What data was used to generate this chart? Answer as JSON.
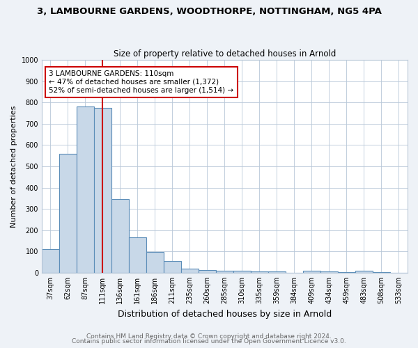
{
  "title1": "3, LAMBOURNE GARDENS, WOODTHORPE, NOTTINGHAM, NG5 4PA",
  "title2": "Size of property relative to detached houses in Arnold",
  "xlabel": "Distribution of detached houses by size in Arnold",
  "ylabel": "Number of detached properties",
  "categories": [
    "37sqm",
    "62sqm",
    "87sqm",
    "111sqm",
    "136sqm",
    "161sqm",
    "186sqm",
    "211sqm",
    "235sqm",
    "260sqm",
    "285sqm",
    "310sqm",
    "335sqm",
    "359sqm",
    "384sqm",
    "409sqm",
    "434sqm",
    "459sqm",
    "483sqm",
    "508sqm",
    "533sqm"
  ],
  "values": [
    110,
    560,
    780,
    775,
    345,
    165,
    97,
    55,
    18,
    13,
    10,
    8,
    5,
    5,
    0,
    8,
    5,
    3,
    10,
    3,
    0
  ],
  "bar_color": "#c8d8e8",
  "bar_edge_color": "#5b8db8",
  "bar_edge_width": 0.8,
  "vline_x_index": 3,
  "vline_color": "#cc0000",
  "annotation_text": "3 LAMBOURNE GARDENS: 110sqm\n← 47% of detached houses are smaller (1,372)\n52% of semi-detached houses are larger (1,514) →",
  "annotation_box_color": "white",
  "annotation_box_edge_color": "#cc0000",
  "ylim": [
    0,
    1000
  ],
  "yticks": [
    0,
    100,
    200,
    300,
    400,
    500,
    600,
    700,
    800,
    900,
    1000
  ],
  "footer1": "Contains HM Land Registry data © Crown copyright and database right 2024.",
  "footer2": "Contains public sector information licensed under the Open Government Licence v3.0.",
  "bg_color": "#eef2f7",
  "plot_bg_color": "#ffffff",
  "grid_color": "#b8c8d8",
  "title1_fontsize": 9.5,
  "title2_fontsize": 8.5,
  "xlabel_fontsize": 9,
  "ylabel_fontsize": 8,
  "tick_fontsize": 7,
  "annotation_fontsize": 7.5,
  "footer_fontsize": 6.5,
  "footer_color": "#666666"
}
